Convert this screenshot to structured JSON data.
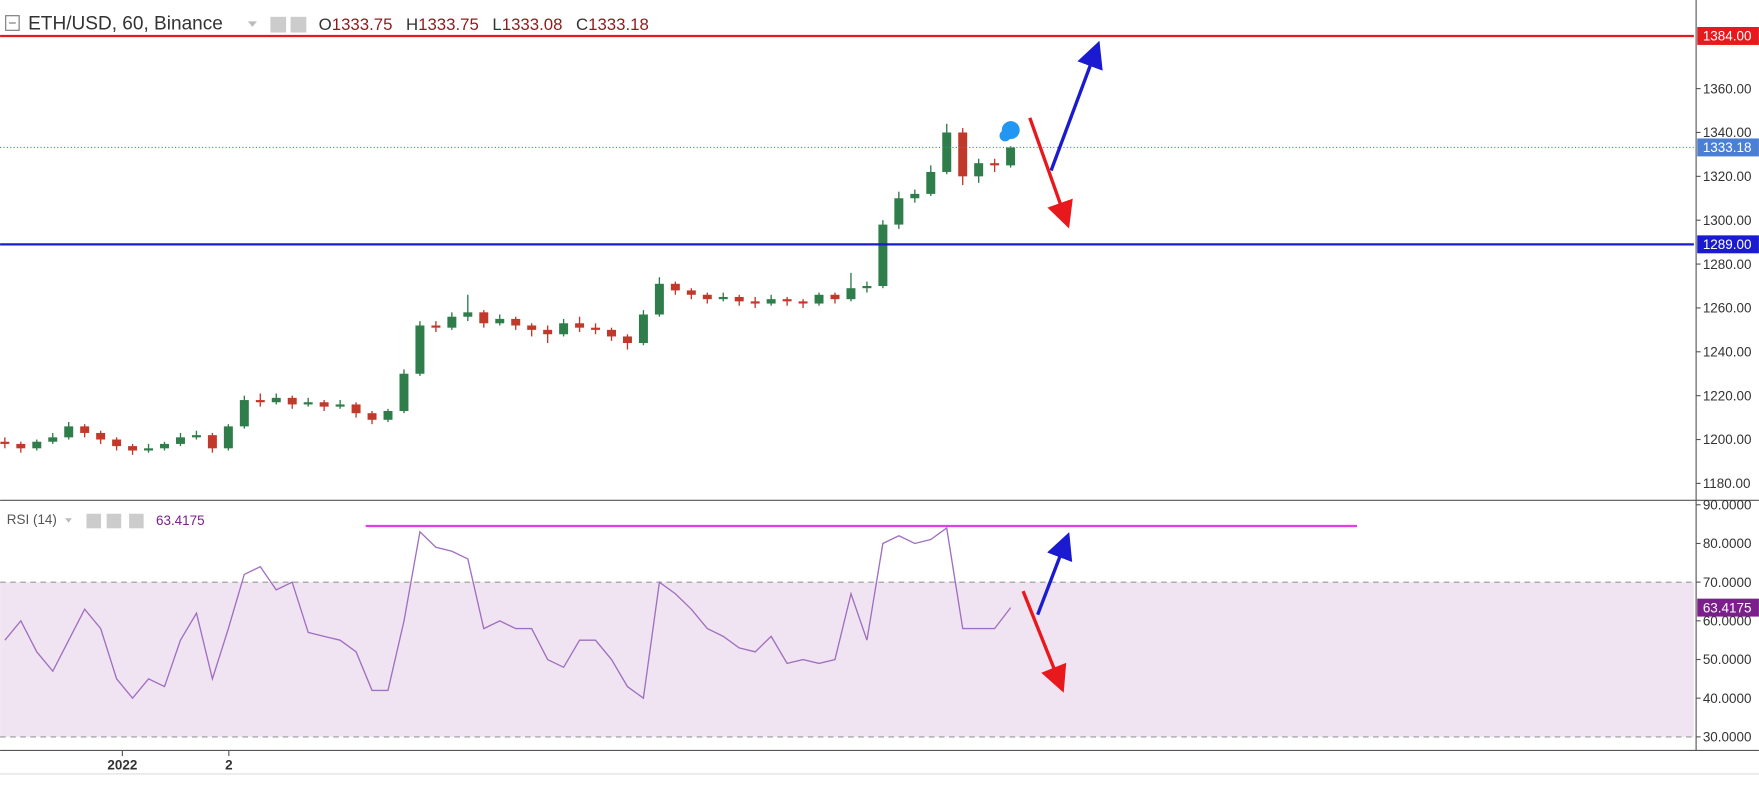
{
  "chart_data": [
    {
      "type": "candlestick",
      "title": "ETH/USD, 60, Binance",
      "header_ohlc": [
        {
          "label": "O",
          "value": 1333.75
        },
        {
          "label": "H",
          "value": 1333.75
        },
        {
          "label": "L",
          "value": 1333.08
        },
        {
          "label": "C",
          "value": 1333.18
        }
      ],
      "x": [
        0,
        1,
        2,
        3,
        4,
        5,
        6,
        7,
        8,
        9,
        10,
        11,
        12,
        13,
        14,
        15,
        16,
        17,
        18,
        19,
        20,
        21,
        22,
        23,
        24,
        25,
        26,
        27,
        28,
        29,
        30,
        31,
        32,
        33,
        34,
        35,
        36,
        37,
        38,
        39,
        40,
        41,
        42,
        43,
        44,
        45,
        46,
        47,
        48,
        49,
        50,
        51,
        52,
        53,
        54,
        55,
        56,
        57,
        58,
        59,
        60,
        61,
        62,
        63
      ],
      "open": [
        1199,
        1198,
        1196,
        1199,
        1201,
        1206,
        1203,
        1200,
        1197,
        1195,
        1196,
        1198,
        1201,
        1202,
        1196,
        1206,
        1218,
        1217,
        1219,
        1216,
        1217,
        1215,
        1216,
        1212,
        1209,
        1213,
        1230,
        1252,
        1251,
        1256,
        1258,
        1253,
        1255,
        1252,
        1250,
        1248,
        1253,
        1251,
        1250,
        1247,
        1244,
        1257,
        1271,
        1268,
        1266,
        1264,
        1265,
        1263,
        1262,
        1264,
        1263,
        1262,
        1266,
        1264,
        1269,
        1270,
        1298,
        1310,
        1312,
        1322,
        1340,
        1320,
        1326,
        1325
      ],
      "high": [
        1201,
        1199,
        1200,
        1203,
        1208,
        1207,
        1204,
        1201,
        1198,
        1198,
        1199,
        1203,
        1204,
        1203,
        1207,
        1220,
        1221,
        1221,
        1220,
        1219,
        1218,
        1218,
        1217,
        1213,
        1214,
        1232,
        1254,
        1254,
        1258,
        1266,
        1259,
        1257,
        1256,
        1253,
        1252,
        1255,
        1256,
        1253,
        1251,
        1248,
        1259,
        1274,
        1272,
        1269,
        1267,
        1267,
        1266,
        1265,
        1266,
        1265,
        1264,
        1267,
        1267,
        1276,
        1272,
        1300,
        1313,
        1314,
        1325,
        1344,
        1342,
        1328,
        1328,
        1333.75
      ],
      "low": [
        1196,
        1194,
        1195,
        1198,
        1200,
        1201,
        1198,
        1195,
        1193,
        1194,
        1195,
        1197,
        1200,
        1194,
        1195,
        1205,
        1215,
        1216,
        1214,
        1215,
        1213,
        1214,
        1210,
        1207,
        1208,
        1212,
        1229,
        1249,
        1250,
        1254,
        1251,
        1252,
        1250,
        1247,
        1244,
        1247,
        1249,
        1248,
        1245,
        1241,
        1243,
        1256,
        1266,
        1264,
        1262,
        1263,
        1261,
        1260,
        1261,
        1261,
        1260,
        1261,
        1262,
        1263,
        1267,
        1269,
        1296,
        1308,
        1311,
        1321,
        1316,
        1317,
        1322,
        1324
      ],
      "close": [
        1198,
        1196,
        1199,
        1201,
        1206,
        1203,
        1200,
        1197,
        1195,
        1196,
        1198,
        1201,
        1202,
        1196,
        1206,
        1218,
        1217,
        1219,
        1216,
        1217,
        1215,
        1216,
        1212,
        1209,
        1213,
        1230,
        1252,
        1251,
        1256,
        1258,
        1253,
        1255,
        1252,
        1250,
        1248,
        1253,
        1251,
        1250,
        1247,
        1244,
        1257,
        1271,
        1268,
        1266,
        1264,
        1265,
        1263,
        1262,
        1264,
        1263,
        1262,
        1266,
        1264,
        1269,
        1270,
        1298,
        1310,
        1312,
        1322,
        1340,
        1320,
        1326,
        1325,
        1333.18
      ],
      "up_color": "#2f7d4a",
      "down_color": "#c0392b",
      "last_color": "#4a7fd4",
      "xlim": [
        -0.3,
        105.8
      ],
      "ylim": [
        1172.3,
        1400.4
      ],
      "xticks": [
        {
          "value": 7.36,
          "label": "2022"
        },
        {
          "value": 14.03,
          "label": "2"
        }
      ],
      "yticks": [
        {
          "value": 1180,
          "label": "1180.00"
        },
        {
          "value": 1200,
          "label": "1200.00"
        },
        {
          "value": 1220,
          "label": "1220.00"
        },
        {
          "value": 1240,
          "label": "1240.00"
        },
        {
          "value": 1260,
          "label": "1260.00"
        },
        {
          "value": 1280,
          "label": "1280.00"
        },
        {
          "value": 1300,
          "label": "1300.00"
        },
        {
          "value": 1320,
          "label": "1320.00"
        },
        {
          "value": 1340,
          "label": "1340.00"
        },
        {
          "value": 1360,
          "label": "1360.00"
        }
      ],
      "hlines": [
        {
          "value": 1384,
          "label": "1384.00",
          "color": "#e8191c"
        },
        {
          "value": 1289,
          "label": "1289.00",
          "color": "#1a1ad0"
        }
      ]
    },
    {
      "type": "line",
      "title": "RSI (14)",
      "x": [
        0,
        1,
        2,
        3,
        4,
        5,
        6,
        7,
        8,
        9,
        10,
        11,
        12,
        13,
        14,
        15,
        16,
        17,
        18,
        19,
        20,
        21,
        22,
        23,
        24,
        25,
        26,
        27,
        28,
        29,
        30,
        31,
        32,
        33,
        34,
        35,
        36,
        37,
        38,
        39,
        40,
        41,
        42,
        43,
        44,
        45,
        46,
        47,
        48,
        49,
        50,
        51,
        52,
        53,
        54,
        55,
        56,
        57,
        58,
        59,
        60,
        61,
        62,
        63
      ],
      "values": [
        55,
        60,
        52,
        47,
        55,
        63,
        58,
        45,
        40,
        45,
        43,
        55,
        62,
        45,
        58,
        72,
        74,
        68,
        70,
        57,
        56,
        55,
        52,
        42,
        42,
        60,
        83,
        79,
        78,
        76,
        58,
        60,
        58,
        58,
        50,
        48,
        55,
        55,
        50,
        43,
        40,
        70,
        67,
        63,
        58,
        56,
        53,
        52,
        56,
        49,
        50,
        49,
        50,
        67,
        55,
        80,
        82,
        80,
        81,
        84,
        58,
        58,
        58,
        63.4175
      ],
      "color": "#a070c0",
      "value_color": "#7b1f8a",
      "band_color": "#f1e4f2",
      "xlim": [
        -0.3,
        105.8
      ],
      "ylim": [
        26.5,
        91.16
      ],
      "yticks": [
        {
          "value": 30,
          "label": "30.0000"
        },
        {
          "value": 40,
          "label": "40.0000"
        },
        {
          "value": 50,
          "label": "50.0000"
        },
        {
          "value": 60,
          "label": "60.0000"
        },
        {
          "value": 70,
          "label": "70.0000"
        },
        {
          "value": 80,
          "label": "80.0000"
        },
        {
          "value": 90,
          "label": "90.0000"
        }
      ],
      "bands": [
        30,
        70
      ],
      "trendlines": [
        {
          "value": 84.5,
          "from": 22.6,
          "to": 84.7,
          "color": "#e83be8"
        }
      ]
    }
  ]
}
